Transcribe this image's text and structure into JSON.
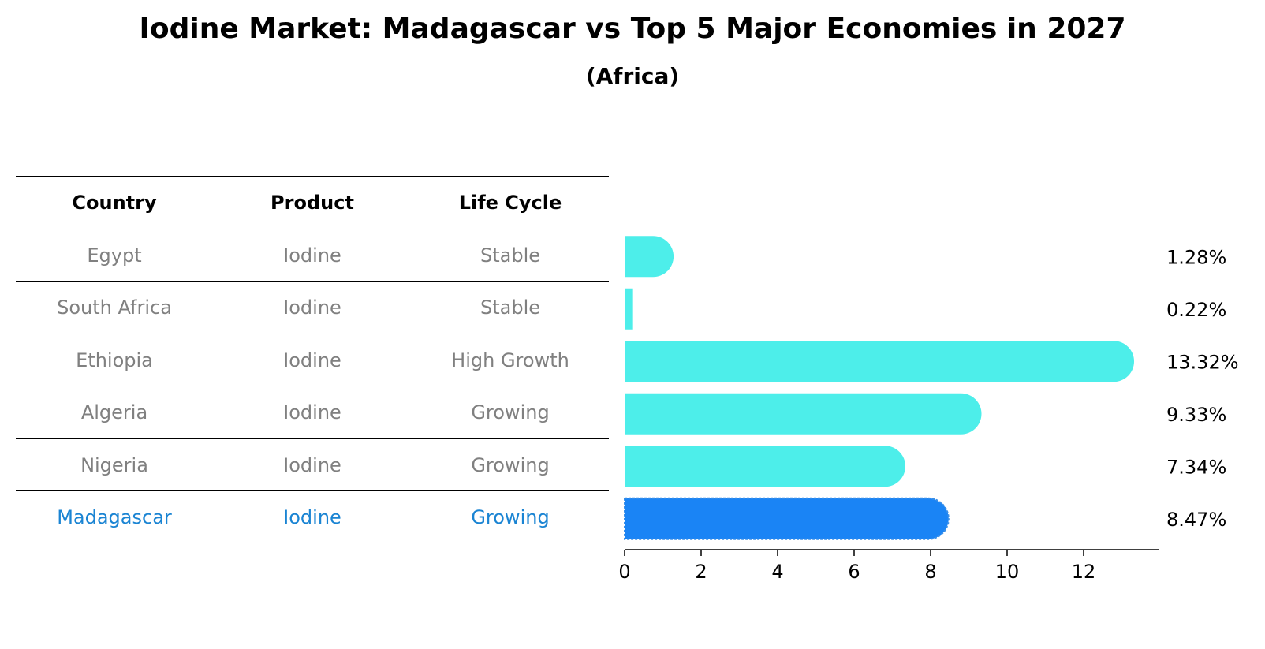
{
  "title": "Iodine Market: Madagascar vs Top 5 Major Economies in 2027",
  "subtitle": "(Africa)",
  "table": {
    "headers": [
      "Country",
      "Product",
      "Life Cycle"
    ],
    "rows": [
      [
        "Egypt",
        "Iodine",
        "Stable"
      ],
      [
        "South Africa",
        "Iodine",
        "Stable"
      ],
      [
        "Ethiopia",
        "Iodine",
        "High Growth"
      ],
      [
        "Algeria",
        "Iodine",
        "Growing"
      ],
      [
        "Nigeria",
        "Iodine",
        "Growing"
      ],
      [
        "Madagascar",
        "Iodine",
        "Growing"
      ]
    ]
  },
  "colors": {
    "bar": "#4deeea",
    "highlight_bar": "#1a84f5",
    "highlight_text": "#1a84d3",
    "muted_text": "#808080"
  },
  "chart_data": {
    "type": "bar",
    "orientation": "horizontal",
    "categories": [
      "Egypt",
      "South Africa",
      "Ethiopia",
      "Algeria",
      "Nigeria",
      "Madagascar"
    ],
    "values": [
      1.28,
      0.22,
      13.32,
      9.33,
      7.34,
      8.47
    ],
    "value_labels": [
      "1.28%",
      "0.22%",
      "13.32%",
      "9.33%",
      "7.34%",
      "8.47%"
    ],
    "highlight": "Madagascar",
    "xticks": [
      "0",
      "2",
      "4",
      "6",
      "8",
      "10",
      "12"
    ],
    "xlim": [
      0,
      14
    ],
    "title": "",
    "xlabel": "",
    "ylabel": ""
  }
}
